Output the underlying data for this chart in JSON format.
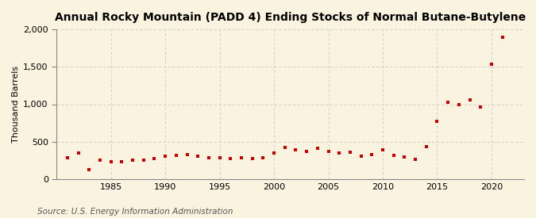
{
  "title": "Annual Rocky Mountain (PADD 4) Ending Stocks of Normal Butane-Butylene",
  "ylabel": "Thousand Barrels",
  "source": "Source: U.S. Energy Information Administration",
  "background_color": "#faf3e0",
  "plot_bg_color": "#faf3e0",
  "marker_color": "#cc0000",
  "marker": "s",
  "markersize": 3.5,
  "years": [
    1981,
    1982,
    1983,
    1984,
    1985,
    1986,
    1987,
    1988,
    1989,
    1990,
    1991,
    1992,
    1993,
    1994,
    1995,
    1996,
    1997,
    1998,
    1999,
    2000,
    2001,
    2002,
    2003,
    2004,
    2005,
    2006,
    2007,
    2008,
    2009,
    2010,
    2011,
    2012,
    2013,
    2014,
    2015,
    2016,
    2017,
    2018,
    2019,
    2020,
    2021
  ],
  "values": [
    290,
    345,
    130,
    255,
    230,
    235,
    250,
    250,
    270,
    310,
    315,
    325,
    305,
    290,
    280,
    270,
    285,
    275,
    285,
    345,
    420,
    395,
    365,
    415,
    365,
    345,
    355,
    310,
    325,
    390,
    315,
    295,
    260,
    430,
    775,
    1025,
    1000,
    1055,
    960,
    1530,
    1900
  ],
  "ylim": [
    0,
    2000
  ],
  "yticks": [
    0,
    500,
    1000,
    1500,
    2000
  ],
  "ytick_labels": [
    "0",
    "500",
    "1,000",
    "1,500",
    "2,000"
  ],
  "xticks": [
    1985,
    1990,
    1995,
    2000,
    2005,
    2010,
    2015,
    2020
  ],
  "xlim": [
    1980,
    2023
  ],
  "grid_color": "#c8c8c8",
  "spine_color": "#888888",
  "title_fontsize": 10,
  "axis_fontsize": 8,
  "ylabel_fontsize": 8,
  "source_fontsize": 7.5
}
